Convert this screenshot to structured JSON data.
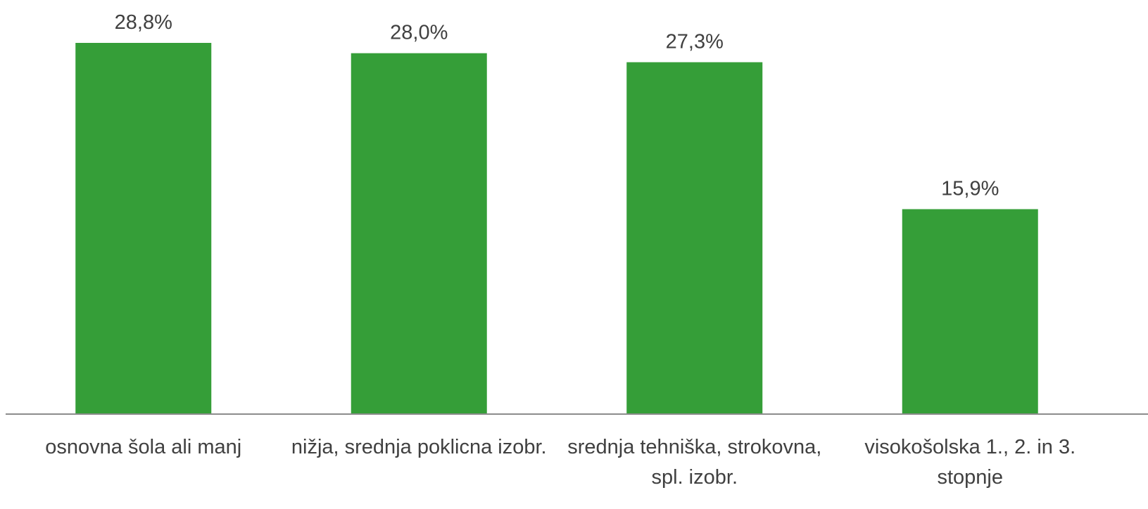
{
  "chart_data": {
    "type": "bar",
    "categories": [
      "osnovna šola ali manj",
      "nižja, srednja poklicna izobr.",
      "srednja tehniška, strokovna, spl. izobr.",
      "visokošolska 1., 2. in 3. stopnje"
    ],
    "values": [
      28.8,
      28.0,
      27.3,
      15.9
    ],
    "value_labels": [
      "28,8%",
      "28,0%",
      "27,3%",
      "15,9%"
    ],
    "color": "#359e38"
  }
}
